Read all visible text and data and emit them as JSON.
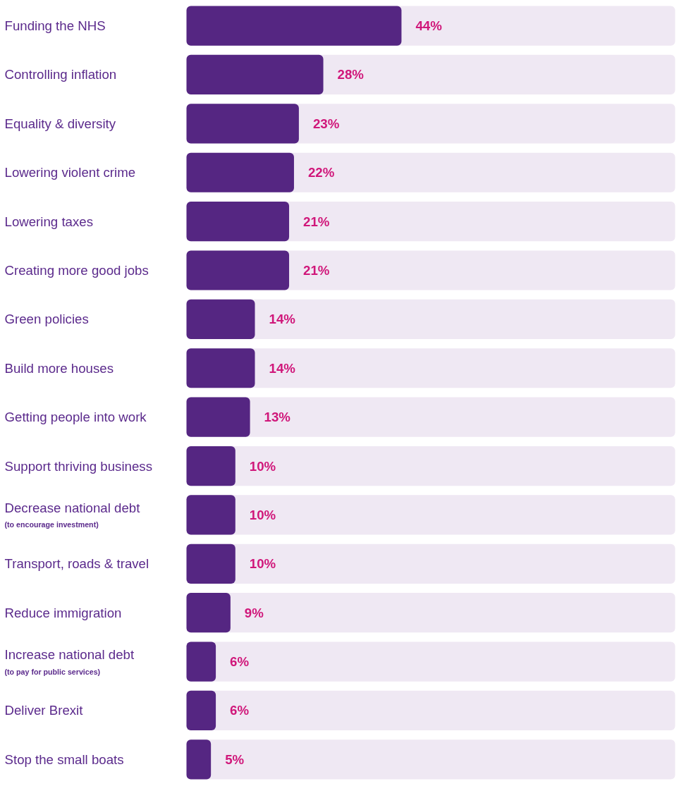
{
  "chart_data": {
    "type": "bar",
    "orientation": "horizontal",
    "categories": [
      "Funding the NHS",
      "Controlling inflation",
      "Equality & diversity",
      "Lowering violent crime",
      "Lowering taxes",
      "Creating more good jobs",
      "Green policies",
      "Build more houses",
      "Getting people into work",
      "Support thriving business",
      "Decrease national debt\n(to encourage investment)",
      "Transport, roads & travel",
      "Reduce immigration",
      "Increase national debt\n(to pay for public services)",
      "Deliver Brexit",
      "Stop the small boats"
    ],
    "values": [
      44,
      28,
      23,
      22,
      21,
      21,
      14,
      14,
      13,
      10,
      10,
      10,
      9,
      6,
      6,
      5
    ],
    "value_labels": [
      "44%",
      "28%",
      "23%",
      "22%",
      "21%",
      "21%",
      "14%",
      "14%",
      "13%",
      "10%",
      "10%",
      "10%",
      "9%",
      "6%",
      "6%",
      "5%"
    ],
    "color": "#552682",
    "xlim": [
      0,
      100
    ],
    "tick_labels": "y",
    "grid": false
  }
}
